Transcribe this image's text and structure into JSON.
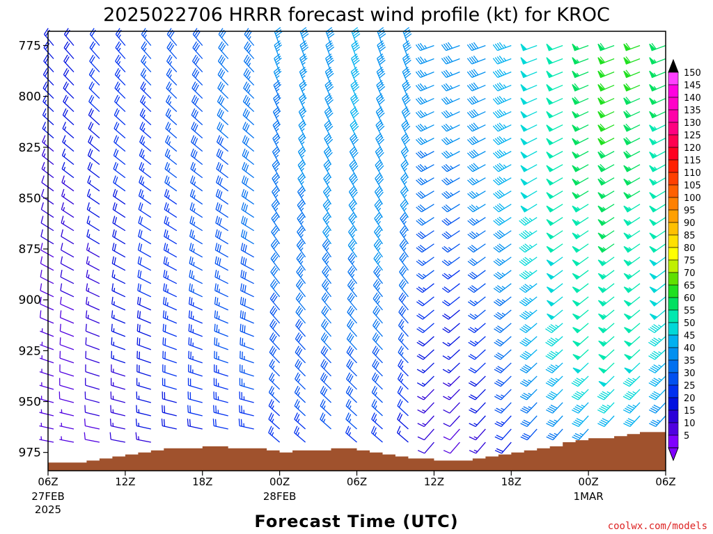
{
  "chart_data": {
    "type": "wind-barb",
    "title": "2025022706 HRRR forecast wind profile (kt) for KROC",
    "xlabel": "Forecast Time (UTC)",
    "ylabel": "",
    "y_axis": {
      "reversed": true,
      "range": [
        768,
        984
      ],
      "ticks": [
        775,
        800,
        825,
        850,
        875,
        900,
        925,
        950,
        975
      ]
    },
    "x_axis": {
      "range_hours": [
        0,
        48
      ],
      "ticks": [
        {
          "hour": 0,
          "label": "06Z",
          "date": "27FEB",
          "year": "2025"
        },
        {
          "hour": 6,
          "label": "12Z",
          "date": "",
          "year": ""
        },
        {
          "hour": 12,
          "label": "18Z",
          "date": "",
          "year": ""
        },
        {
          "hour": 18,
          "label": "00Z",
          "date": "28FEB",
          "year": ""
        },
        {
          "hour": 24,
          "label": "06Z",
          "date": "",
          "year": ""
        },
        {
          "hour": 30,
          "label": "12Z",
          "date": "",
          "year": ""
        },
        {
          "hour": 36,
          "label": "18Z",
          "date": "",
          "year": ""
        },
        {
          "hour": 42,
          "label": "00Z",
          "date": "1MAR",
          "year": ""
        },
        {
          "hour": 48,
          "label": "06Z",
          "date": "",
          "year": ""
        }
      ]
    },
    "colorbar": {
      "levels": [
        5,
        10,
        15,
        20,
        25,
        30,
        35,
        40,
        45,
        50,
        55,
        60,
        65,
        70,
        75,
        80,
        85,
        90,
        95,
        100,
        105,
        110,
        115,
        120,
        125,
        130,
        135,
        140,
        145,
        150
      ],
      "colors": [
        "#8000ff",
        "#5000e0",
        "#2c00d8",
        "#0010e0",
        "#0030f0",
        "#0050f0",
        "#0070f0",
        "#0090f0",
        "#00b0f0",
        "#00d8d8",
        "#00e8b0",
        "#00e060",
        "#20e020",
        "#60e000",
        "#c0f000",
        "#ffff00",
        "#ffe000",
        "#ffc000",
        "#ffa000",
        "#ff8000",
        "#ff6000",
        "#ff4000",
        "#ff2000",
        "#ff0020",
        "#ff0050",
        "#ff0080",
        "#ff00a8",
        "#ff00c8",
        "#ff00e0",
        "#ff40ff"
      ],
      "extend": "both"
    },
    "pressure_levels": [
      775,
      800,
      825,
      850,
      875,
      900,
      925,
      950,
      975
    ],
    "wind_speed_kt": [
      [
        20,
        20,
        22,
        24,
        26,
        28,
        30,
        32,
        34,
        36,
        38,
        40,
        42,
        40,
        38,
        36,
        38,
        40,
        44,
        48,
        52,
        56,
        60,
        62,
        58
      ],
      [
        18,
        19,
        21,
        23,
        25,
        27,
        29,
        31,
        33,
        35,
        37,
        39,
        41,
        40,
        38,
        36,
        37,
        40,
        44,
        48,
        52,
        58,
        62,
        60,
        56
      ],
      [
        15,
        17,
        19,
        21,
        24,
        26,
        28,
        30,
        32,
        34,
        36,
        38,
        40,
        40,
        38,
        35,
        36,
        39,
        44,
        48,
        52,
        56,
        60,
        58,
        54
      ],
      [
        12,
        14,
        17,
        20,
        23,
        25,
        27,
        29,
        31,
        33,
        35,
        37,
        38,
        38,
        36,
        32,
        32,
        36,
        42,
        48,
        52,
        55,
        56,
        55,
        52
      ],
      [
        10,
        12,
        15,
        18,
        21,
        24,
        26,
        28,
        30,
        32,
        34,
        35,
        36,
        36,
        34,
        28,
        26,
        32,
        38,
        46,
        50,
        52,
        55,
        54,
        50
      ],
      [
        8,
        10,
        13,
        17,
        20,
        23,
        25,
        27,
        29,
        30,
        32,
        33,
        33,
        34,
        30,
        22,
        20,
        26,
        34,
        44,
        48,
        52,
        55,
        52,
        48
      ],
      [
        7,
        9,
        12,
        16,
        19,
        22,
        24,
        26,
        27,
        28,
        29,
        30,
        30,
        30,
        26,
        18,
        16,
        22,
        30,
        40,
        46,
        50,
        52,
        50,
        46
      ],
      [
        6,
        8,
        11,
        14,
        17,
        20,
        22,
        24,
        25,
        26,
        27,
        28,
        28,
        27,
        22,
        14,
        12,
        18,
        26,
        34,
        40,
        44,
        46,
        44,
        40
      ],
      [
        5,
        6,
        9,
        12,
        14,
        16,
        18,
        20,
        21,
        22,
        23,
        24,
        24,
        22,
        16,
        10,
        8,
        12,
        18,
        24,
        28,
        30,
        32,
        30,
        28
      ]
    ],
    "surface_pressure": [
      {
        "hour": 0,
        "p": 980
      },
      {
        "hour": 2,
        "p": 980
      },
      {
        "hour": 3,
        "p": 979
      },
      {
        "hour": 4,
        "p": 978
      },
      {
        "hour": 5,
        "p": 977
      },
      {
        "hour": 6,
        "p": 976
      },
      {
        "hour": 7,
        "p": 975
      },
      {
        "hour": 8,
        "p": 974
      },
      {
        "hour": 9,
        "p": 973
      },
      {
        "hour": 12,
        "p": 972
      },
      {
        "hour": 13,
        "p": 972
      },
      {
        "hour": 14,
        "p": 973
      },
      {
        "hour": 17,
        "p": 974
      },
      {
        "hour": 18,
        "p": 975
      },
      {
        "hour": 19,
        "p": 974
      },
      {
        "hour": 22,
        "p": 973
      },
      {
        "hour": 24,
        "p": 974
      },
      {
        "hour": 25,
        "p": 975
      },
      {
        "hour": 26,
        "p": 976
      },
      {
        "hour": 27,
        "p": 977
      },
      {
        "hour": 28,
        "p": 978
      },
      {
        "hour": 30,
        "p": 979
      },
      {
        "hour": 32,
        "p": 979
      },
      {
        "hour": 33,
        "p": 978
      },
      {
        "hour": 34,
        "p": 977
      },
      {
        "hour": 35,
        "p": 976
      },
      {
        "hour": 36,
        "p": 975
      },
      {
        "hour": 37,
        "p": 974
      },
      {
        "hour": 38,
        "p": 973
      },
      {
        "hour": 39,
        "p": 972
      },
      {
        "hour": 40,
        "p": 970
      },
      {
        "hour": 41,
        "p": 969
      },
      {
        "hour": 42,
        "p": 968
      },
      {
        "hour": 43,
        "p": 968
      },
      {
        "hour": 44,
        "p": 967
      },
      {
        "hour": 45,
        "p": 966
      },
      {
        "hour": 46,
        "p": 965
      },
      {
        "hour": 48,
        "p": 964
      }
    ],
    "grid": false,
    "legend": "colorbar-right",
    "ground_color": "#a0522d"
  },
  "credit": "coolwx.com/models"
}
